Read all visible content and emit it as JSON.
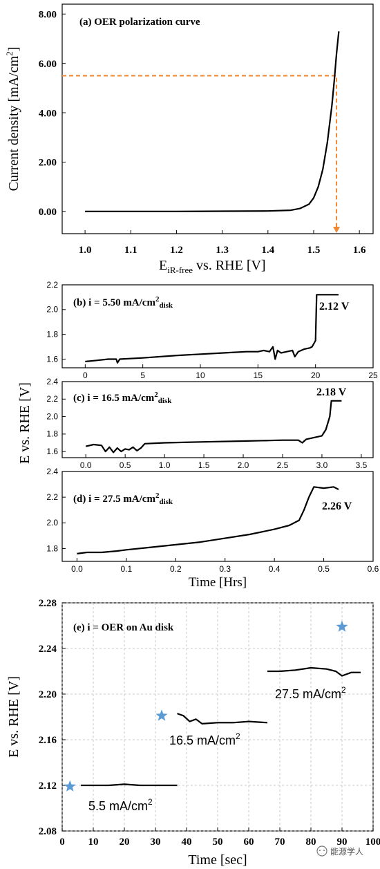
{
  "chart_data": [
    {
      "id": "a",
      "type": "line",
      "title": "(a) OER polarization curve",
      "xlabel_main": "E",
      "xlabel_sub": "iR-free",
      "xlabel_rest": " vs. RHE [V]",
      "ylabel": "Current density [mA/cm",
      "ylabel_sup": "2",
      "ylabel_end": "]",
      "xlim": [
        0.95,
        1.63
      ],
      "ylim": [
        -0.9,
        8.4
      ],
      "xticks": [
        "1.0",
        "1.1",
        "1.2",
        "1.3",
        "1.4",
        "1.5",
        "1.6"
      ],
      "yticks": [
        "0.00",
        "2.00",
        "4.00",
        "6.00",
        "8.00"
      ],
      "series": [
        {
          "x": [
            1.0,
            1.1,
            1.2,
            1.3,
            1.4,
            1.45,
            1.47,
            1.49,
            1.5,
            1.51,
            1.52,
            1.53,
            1.54,
            1.545,
            1.55,
            1.555
          ],
          "y": [
            0.0,
            0.0,
            0.0,
            0.01,
            0.02,
            0.05,
            0.12,
            0.3,
            0.55,
            1.0,
            1.7,
            2.8,
            4.3,
            5.3,
            6.4,
            7.3
          ]
        }
      ],
      "guide": {
        "x": 1.55,
        "y": 5.5
      },
      "color": "#000000",
      "guide_color": "#ee8833"
    },
    {
      "id": "b",
      "type": "line",
      "title_prefix": "(b) ",
      "title_i": "i",
      "title_mid": " = 5.50 mA/cm",
      "title_sup": "2",
      "title_sub": "disk",
      "xlim": [
        -2,
        25
      ],
      "ylim": [
        1.53,
        2.2
      ],
      "xticks": [
        "0",
        "5",
        "10",
        "15",
        "20",
        "25"
      ],
      "yticks": [
        "1.6",
        "1.8",
        "2.0",
        "2.2"
      ],
      "annotation": "2.12 V",
      "series": [
        {
          "x": [
            0,
            1,
            2,
            2.7,
            2.8,
            3,
            5,
            8,
            10,
            12,
            14,
            15,
            15.5,
            16,
            16.3,
            16.5,
            16.7,
            17,
            17.5,
            18,
            18.2,
            18.5,
            19,
            19.5,
            19.7,
            20,
            20.1,
            20.2,
            21,
            22
          ],
          "y": [
            1.58,
            1.59,
            1.6,
            1.6,
            1.57,
            1.6,
            1.61,
            1.63,
            1.64,
            1.65,
            1.66,
            1.66,
            1.67,
            1.66,
            1.7,
            1.6,
            1.67,
            1.65,
            1.66,
            1.67,
            1.62,
            1.66,
            1.68,
            1.69,
            1.7,
            1.75,
            2.12,
            2.12,
            2.12,
            2.12
          ]
        }
      ]
    },
    {
      "id": "c",
      "type": "line",
      "title_prefix": "(c) ",
      "title_i": "i",
      "title_mid": " = 16.5 mA/cm",
      "title_sup": "2",
      "title_sub": "disk",
      "xlim": [
        -0.3,
        3.65
      ],
      "ylim": [
        1.53,
        2.4
      ],
      "xticks": [
        "0.0",
        "0.5",
        "1.0",
        "1.5",
        "2.0",
        "2.5",
        "3.0",
        "3.5"
      ],
      "yticks": [
        "1.6",
        "1.8",
        "2.0",
        "2.2",
        "2.4"
      ],
      "annotation": "2.18 V",
      "series": [
        {
          "x": [
            0,
            0.1,
            0.2,
            0.25,
            0.3,
            0.35,
            0.4,
            0.45,
            0.5,
            0.55,
            0.6,
            0.65,
            0.7,
            0.75,
            1.0,
            1.5,
            2.0,
            2.5,
            2.7,
            2.75,
            2.8,
            3.0,
            3.05,
            3.1,
            3.12,
            3.15,
            3.25
          ],
          "y": [
            1.66,
            1.68,
            1.67,
            1.6,
            1.65,
            1.59,
            1.64,
            1.6,
            1.63,
            1.62,
            1.65,
            1.61,
            1.64,
            1.69,
            1.7,
            1.71,
            1.72,
            1.73,
            1.73,
            1.7,
            1.74,
            1.78,
            1.85,
            2.0,
            2.18,
            2.18,
            2.18
          ]
        }
      ]
    },
    {
      "id": "d",
      "type": "line",
      "title_prefix": "(d) ",
      "title_i": "i",
      "title_mid": " = 27.5 mA/cm",
      "title_sup": "2",
      "title_sub": "disk",
      "xlabel": "Time [Hrs]",
      "xlim": [
        -0.03,
        0.6
      ],
      "ylim": [
        1.7,
        2.4
      ],
      "xticks": [
        "0.0",
        "0.1",
        "0.2",
        "0.3",
        "0.4",
        "0.5",
        "0.6"
      ],
      "yticks": [
        "1.8",
        "2.0",
        "2.2",
        "2.4"
      ],
      "annotation": "2.26 V",
      "series": [
        {
          "x": [
            0,
            0.02,
            0.05,
            0.08,
            0.1,
            0.15,
            0.2,
            0.25,
            0.3,
            0.35,
            0.4,
            0.43,
            0.45,
            0.46,
            0.47,
            0.48,
            0.5,
            0.52,
            0.53
          ],
          "y": [
            1.76,
            1.77,
            1.77,
            1.78,
            1.79,
            1.81,
            1.83,
            1.85,
            1.88,
            1.91,
            1.95,
            1.98,
            2.02,
            2.1,
            2.2,
            2.28,
            2.27,
            2.28,
            2.26
          ]
        }
      ]
    },
    {
      "id": "e",
      "type": "line",
      "title": "(e) i = OER on Au disk",
      "xlabel": "Time [sec]",
      "ylabel": "E vs. RHE [V]",
      "xlim": [
        0,
        100
      ],
      "ylim": [
        2.08,
        2.28
      ],
      "xticks": [
        "0",
        "10",
        "20",
        "30",
        "40",
        "50",
        "60",
        "70",
        "80",
        "90",
        "100"
      ],
      "yticks": [
        "2.08",
        "2.12",
        "2.16",
        "2.20",
        "2.24",
        "2.28"
      ],
      "series": [
        {
          "name": "5.5 mA/cm",
          "sup": "2",
          "x": [
            6,
            15,
            20,
            25,
            30,
            37
          ],
          "y": [
            2.12,
            2.12,
            2.121,
            2.12,
            2.12,
            2.12
          ]
        },
        {
          "name": "16.5 mA/cm",
          "sup": "2",
          "x": [
            37,
            39,
            41,
            43,
            45,
            50,
            55,
            60,
            66
          ],
          "y": [
            2.183,
            2.181,
            2.176,
            2.178,
            2.174,
            2.175,
            2.175,
            2.176,
            2.175
          ]
        },
        {
          "name": "27.5 mA/cm",
          "sup": "2",
          "x": [
            66,
            70,
            75,
            80,
            85,
            88,
            90,
            93,
            96
          ],
          "y": [
            2.22,
            2.22,
            2.221,
            2.223,
            2.222,
            2.22,
            2.216,
            2.219,
            2.219
          ]
        }
      ],
      "stars": [
        {
          "x": 2.5,
          "y": 2.119
        },
        {
          "x": 32,
          "y": 2.181
        },
        {
          "x": 90,
          "y": 2.259
        }
      ],
      "star_color": "#5b9bd5"
    }
  ],
  "shared_ylabel_bcd": "E vs. RHE [V]",
  "watermark": "能源学人"
}
